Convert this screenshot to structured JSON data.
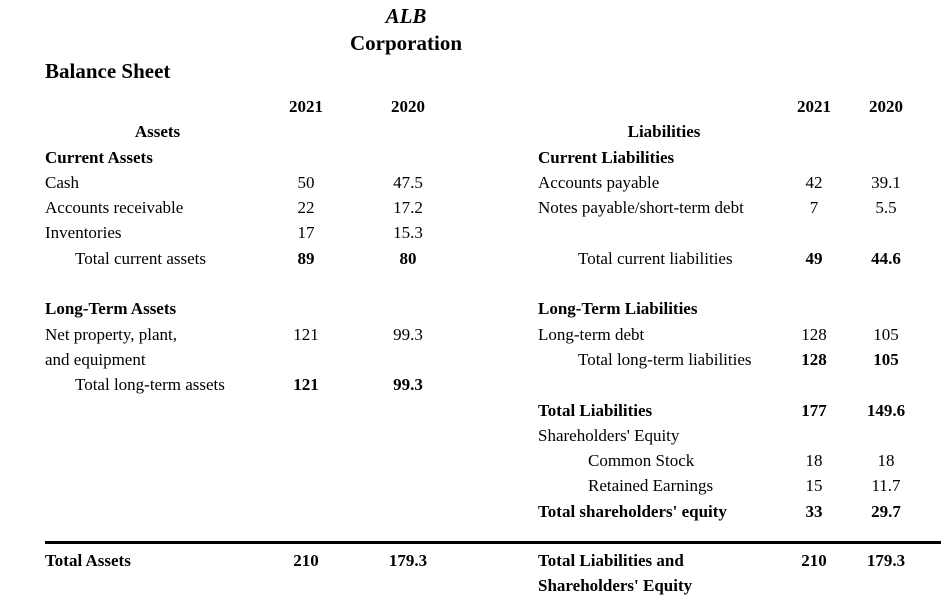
{
  "title": {
    "name": "ALB",
    "subtitle": "Corporation"
  },
  "heading": "Balance Sheet",
  "years": [
    "2021",
    "2020"
  ],
  "colors": {
    "text": "#000000",
    "background": "#ffffff",
    "rule": "#000000"
  },
  "left": {
    "section_header": "Assets",
    "rows": [
      {
        "label": "Current Assets",
        "label_bold": true,
        "v1": "",
        "v2": ""
      },
      {
        "label": "Cash",
        "v1": "50",
        "v2": "47.5"
      },
      {
        "label": "Accounts receivable",
        "v1": "22",
        "v2": "17.2"
      },
      {
        "label": "Inventories",
        "v1": "17",
        "v2": "15.3"
      },
      {
        "label": "Total current assets",
        "indent": 1,
        "v1": "89",
        "v2": "80",
        "values_bold": true
      },
      {
        "label": "",
        "v1": "",
        "v2": ""
      },
      {
        "label": "Long-Term Assets",
        "label_bold": true,
        "v1": "",
        "v2": ""
      },
      {
        "label": "Net property, plant,",
        "v1": "121",
        "v2": "99.3"
      },
      {
        "label": "and equipment",
        "v1": "",
        "v2": ""
      },
      {
        "label": "Total long-term assets",
        "indent": 1,
        "v1": "121",
        "v2": "99.3",
        "values_bold": true
      }
    ],
    "footer": {
      "label_line1": "Total Assets",
      "label_line2": "",
      "v1": "210",
      "v2": "179.3"
    }
  },
  "right": {
    "section_header": "Liabilities",
    "rows": [
      {
        "label": "Current Liabilities",
        "label_bold": true,
        "v1": "",
        "v2": ""
      },
      {
        "label": "Accounts payable",
        "v1": "42",
        "v2": "39.1"
      },
      {
        "label": "Notes payable/short-term debt",
        "v1": "7",
        "v2": "5.5"
      },
      {
        "label": "",
        "v1": "",
        "v2": ""
      },
      {
        "label": "Total current liabilities",
        "indent": 1,
        "v1": "49",
        "v2": "44.6",
        "values_bold": true
      },
      {
        "label": "",
        "v1": "",
        "v2": ""
      },
      {
        "label": "Long-Term Liabilities",
        "label_bold": true,
        "v1": "",
        "v2": ""
      },
      {
        "label": "Long-term debt",
        "v1": "128",
        "v2": "105"
      },
      {
        "label": "Total long-term liabilities",
        "indent": 1,
        "v1": "128",
        "v2": "105",
        "values_bold": true
      },
      {
        "label": "",
        "v1": "",
        "v2": ""
      },
      {
        "label": "Total Liabilities",
        "label_bold": true,
        "v1": "177",
        "v2": "149.6",
        "values_bold": true
      },
      {
        "label": "Shareholders' Equity",
        "v1": "",
        "v2": ""
      },
      {
        "label": "Common Stock",
        "indent": 2,
        "v1": "18",
        "v2": "18"
      },
      {
        "label": "Retained Earnings",
        "indent": 2,
        "v1": "15",
        "v2": "11.7"
      },
      {
        "label": "Total shareholders' equity",
        "label_bold": true,
        "v1": "33",
        "v2": "29.7",
        "values_bold": true
      }
    ],
    "footer": {
      "label_line1": "Total Liabilities and",
      "label_line2": "Shareholders' Equity",
      "v1": "210",
      "v2": "179.3"
    }
  }
}
